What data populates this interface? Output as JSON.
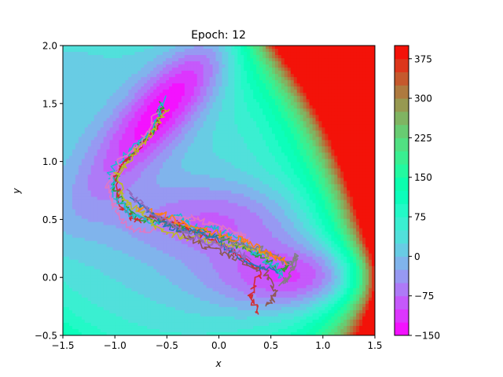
{
  "chart_data": {
    "type": "heatmap",
    "title": "Epoch: 12",
    "xlabel": "x",
    "ylabel": "y",
    "xlim": [
      -1.5,
      1.5
    ],
    "ylim": [
      -0.5,
      2.0
    ],
    "x_ticks": [
      -1.5,
      -1.0,
      -0.5,
      0.0,
      0.5,
      1.0,
      1.5
    ],
    "x_tick_labels": [
      "−1.5",
      "−1.0",
      "−0.5",
      "0.0",
      "0.5",
      "1.0",
      "1.5"
    ],
    "y_ticks": [
      -0.5,
      0.0,
      0.5,
      1.0,
      1.5,
      2.0
    ],
    "y_tick_labels": [
      "−0.5",
      "0.0",
      "0.5",
      "1.0",
      "1.5",
      "2.0"
    ],
    "colorbar": {
      "range": [
        -150,
        400
      ],
      "ticks": [
        -150,
        -75,
        0,
        75,
        150,
        225,
        300,
        375
      ],
      "tick_labels": [
        "−150",
        "−75",
        "0",
        "75",
        "150",
        "225",
        "300",
        "375"
      ]
    },
    "contour_surface": "Muller-Brown potential (filled contours, rainbow colormap, clipped at 400)",
    "minima": [
      {
        "x": -0.558,
        "y": 1.442
      },
      {
        "x": 0.623,
        "y": 0.028
      },
      {
        "x": -0.05,
        "y": 0.467
      }
    ],
    "trajectories": [
      {
        "color": "#2ca02c",
        "points": [
          [
            -0.55,
            1.5
          ],
          [
            -0.62,
            1.3
          ],
          [
            -0.78,
            1.12
          ],
          [
            -0.92,
            0.98
          ],
          [
            -1.02,
            0.82
          ],
          [
            -0.92,
            0.62
          ],
          [
            -0.75,
            0.5
          ],
          [
            -0.55,
            0.48
          ],
          [
            -0.35,
            0.42
          ],
          [
            -0.15,
            0.4
          ],
          [
            0.05,
            0.35
          ],
          [
            0.25,
            0.25
          ],
          [
            0.45,
            0.15
          ],
          [
            0.6,
            0.05
          ],
          [
            0.68,
            0.12
          ]
        ]
      },
      {
        "color": "#d62728",
        "points": [
          [
            -0.5,
            1.45
          ],
          [
            -0.7,
            1.2
          ],
          [
            -0.88,
            1.02
          ],
          [
            -1.0,
            0.85
          ],
          [
            -0.95,
            0.62
          ],
          [
            -0.8,
            0.48
          ],
          [
            -0.6,
            0.52
          ],
          [
            -0.4,
            0.46
          ],
          [
            -0.2,
            0.38
          ],
          [
            0.0,
            0.3
          ],
          [
            0.2,
            0.2
          ],
          [
            0.4,
            0.05
          ],
          [
            0.3,
            -0.15
          ],
          [
            0.38,
            -0.32
          ]
        ]
      },
      {
        "color": "#17becf",
        "points": [
          [
            -0.52,
            1.55
          ],
          [
            -0.65,
            1.25
          ],
          [
            -0.85,
            1.1
          ],
          [
            -1.05,
            0.92
          ],
          [
            -1.0,
            0.7
          ],
          [
            -0.85,
            0.55
          ],
          [
            -0.6,
            0.45
          ],
          [
            -0.4,
            0.55
          ],
          [
            -0.25,
            0.45
          ],
          [
            -0.05,
            0.42
          ],
          [
            0.15,
            0.35
          ],
          [
            0.35,
            0.2
          ],
          [
            0.55,
            0.1
          ],
          [
            0.6,
            0.0
          ]
        ]
      },
      {
        "color": "#e377c2",
        "points": [
          [
            -0.6,
            1.4
          ],
          [
            -0.75,
            1.15
          ],
          [
            -0.95,
            1.0
          ],
          [
            -1.08,
            0.8
          ],
          [
            -1.0,
            0.6
          ],
          [
            -0.85,
            0.42
          ],
          [
            -0.65,
            0.4
          ],
          [
            -0.45,
            0.5
          ],
          [
            -0.25,
            0.52
          ],
          [
            -0.05,
            0.45
          ],
          [
            0.15,
            0.4
          ],
          [
            0.3,
            0.3
          ]
        ]
      },
      {
        "color": "#bcbd22",
        "points": [
          [
            -0.48,
            1.48
          ],
          [
            -0.68,
            1.22
          ],
          [
            -0.82,
            1.05
          ],
          [
            -0.98,
            0.88
          ],
          [
            -0.9,
            0.65
          ],
          [
            -0.72,
            0.55
          ],
          [
            -0.55,
            0.4
          ],
          [
            -0.35,
            0.35
          ],
          [
            -0.1,
            0.32
          ],
          [
            0.1,
            0.28
          ],
          [
            0.3,
            0.25
          ],
          [
            0.5,
            0.18
          ]
        ]
      },
      {
        "color": "#7f7f7f",
        "points": [
          [
            -0.6,
            0.5
          ],
          [
            -0.3,
            0.4
          ],
          [
            0.0,
            0.32
          ],
          [
            0.2,
            0.28
          ],
          [
            0.4,
            0.25
          ],
          [
            0.55,
            0.18
          ],
          [
            0.7,
            0.1
          ],
          [
            0.75,
            0.2
          ],
          [
            0.68,
            0.0
          ],
          [
            0.6,
            -0.05
          ]
        ]
      },
      {
        "color": "#8c564b",
        "points": [
          [
            -0.7,
            0.55
          ],
          [
            -0.45,
            0.45
          ],
          [
            -0.2,
            0.3
          ],
          [
            0.0,
            0.22
          ],
          [
            0.2,
            0.15
          ],
          [
            0.45,
            0.05
          ],
          [
            0.55,
            -0.15
          ],
          [
            0.45,
            -0.25
          ]
        ]
      },
      {
        "color": "#ff7f0e",
        "points": [
          [
            -0.8,
            0.6
          ],
          [
            -0.55,
            0.55
          ],
          [
            -0.3,
            0.45
          ],
          [
            -0.1,
            0.4
          ],
          [
            0.1,
            0.35
          ],
          [
            0.3,
            0.3
          ],
          [
            0.5,
            0.2
          ],
          [
            0.65,
            0.12
          ]
        ]
      },
      {
        "color": "#1f77b4",
        "points": [
          [
            -0.85,
            0.7
          ],
          [
            -0.65,
            0.55
          ],
          [
            -0.45,
            0.42
          ],
          [
            -0.25,
            0.4
          ],
          [
            -0.05,
            0.35
          ],
          [
            0.15,
            0.2
          ],
          [
            0.35,
            0.1
          ],
          [
            0.55,
            0.05
          ]
        ]
      },
      {
        "color": "#9467bd",
        "points": [
          [
            -0.9,
            0.75
          ],
          [
            -0.7,
            0.6
          ],
          [
            -0.5,
            0.48
          ],
          [
            -0.3,
            0.38
          ],
          [
            -0.1,
            0.3
          ],
          [
            0.1,
            0.25
          ],
          [
            0.3,
            0.15
          ]
        ]
      }
    ]
  }
}
